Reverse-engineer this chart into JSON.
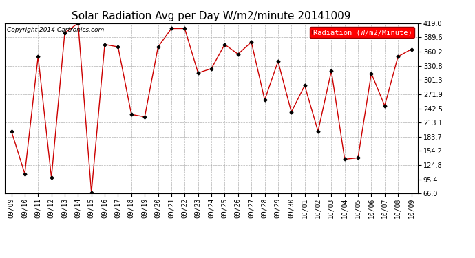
{
  "title": "Solar Radiation Avg per Day W/m2/minute 20141009",
  "copyright": "Copyright 2014 Cartronics.com",
  "legend_label": "Radiation (W/m2/Minute)",
  "dates": [
    "09/09",
    "09/10",
    "09/11",
    "09/12",
    "09/13",
    "09/14",
    "09/15",
    "09/16",
    "09/17",
    "09/18",
    "09/19",
    "09/20",
    "09/21",
    "09/22",
    "09/23",
    "09/24",
    "09/25",
    "09/26",
    "09/27",
    "09/28",
    "09/29",
    "09/30",
    "10/01",
    "10/02",
    "10/03",
    "10/04",
    "10/05",
    "10/06",
    "10/07",
    "10/08",
    "10/09"
  ],
  "values": [
    195.0,
    107.0,
    350.0,
    99.0,
    399.0,
    419.0,
    68.0,
    375.0,
    370.0,
    230.0,
    225.0,
    370.0,
    408.0,
    408.0,
    316.0,
    325.0,
    375.0,
    355.0,
    380.0,
    260.0,
    340.0,
    235.0,
    290.0,
    195.0,
    320.0,
    137.0,
    140.0,
    315.0,
    248.0,
    350.0,
    365.0
  ],
  "line_color": "#cc0000",
  "marker_color": "#000000",
  "bg_color": "#ffffff",
  "grid_color": "#aaaaaa",
  "yticks": [
    66.0,
    95.4,
    124.8,
    154.2,
    183.7,
    213.1,
    242.5,
    271.9,
    301.3,
    330.8,
    360.2,
    389.6,
    419.0
  ],
  "ymin": 66.0,
  "ymax": 419.0,
  "title_fontsize": 11,
  "copyright_fontsize": 6.5,
  "legend_fontsize": 7.5,
  "tick_fontsize": 7
}
